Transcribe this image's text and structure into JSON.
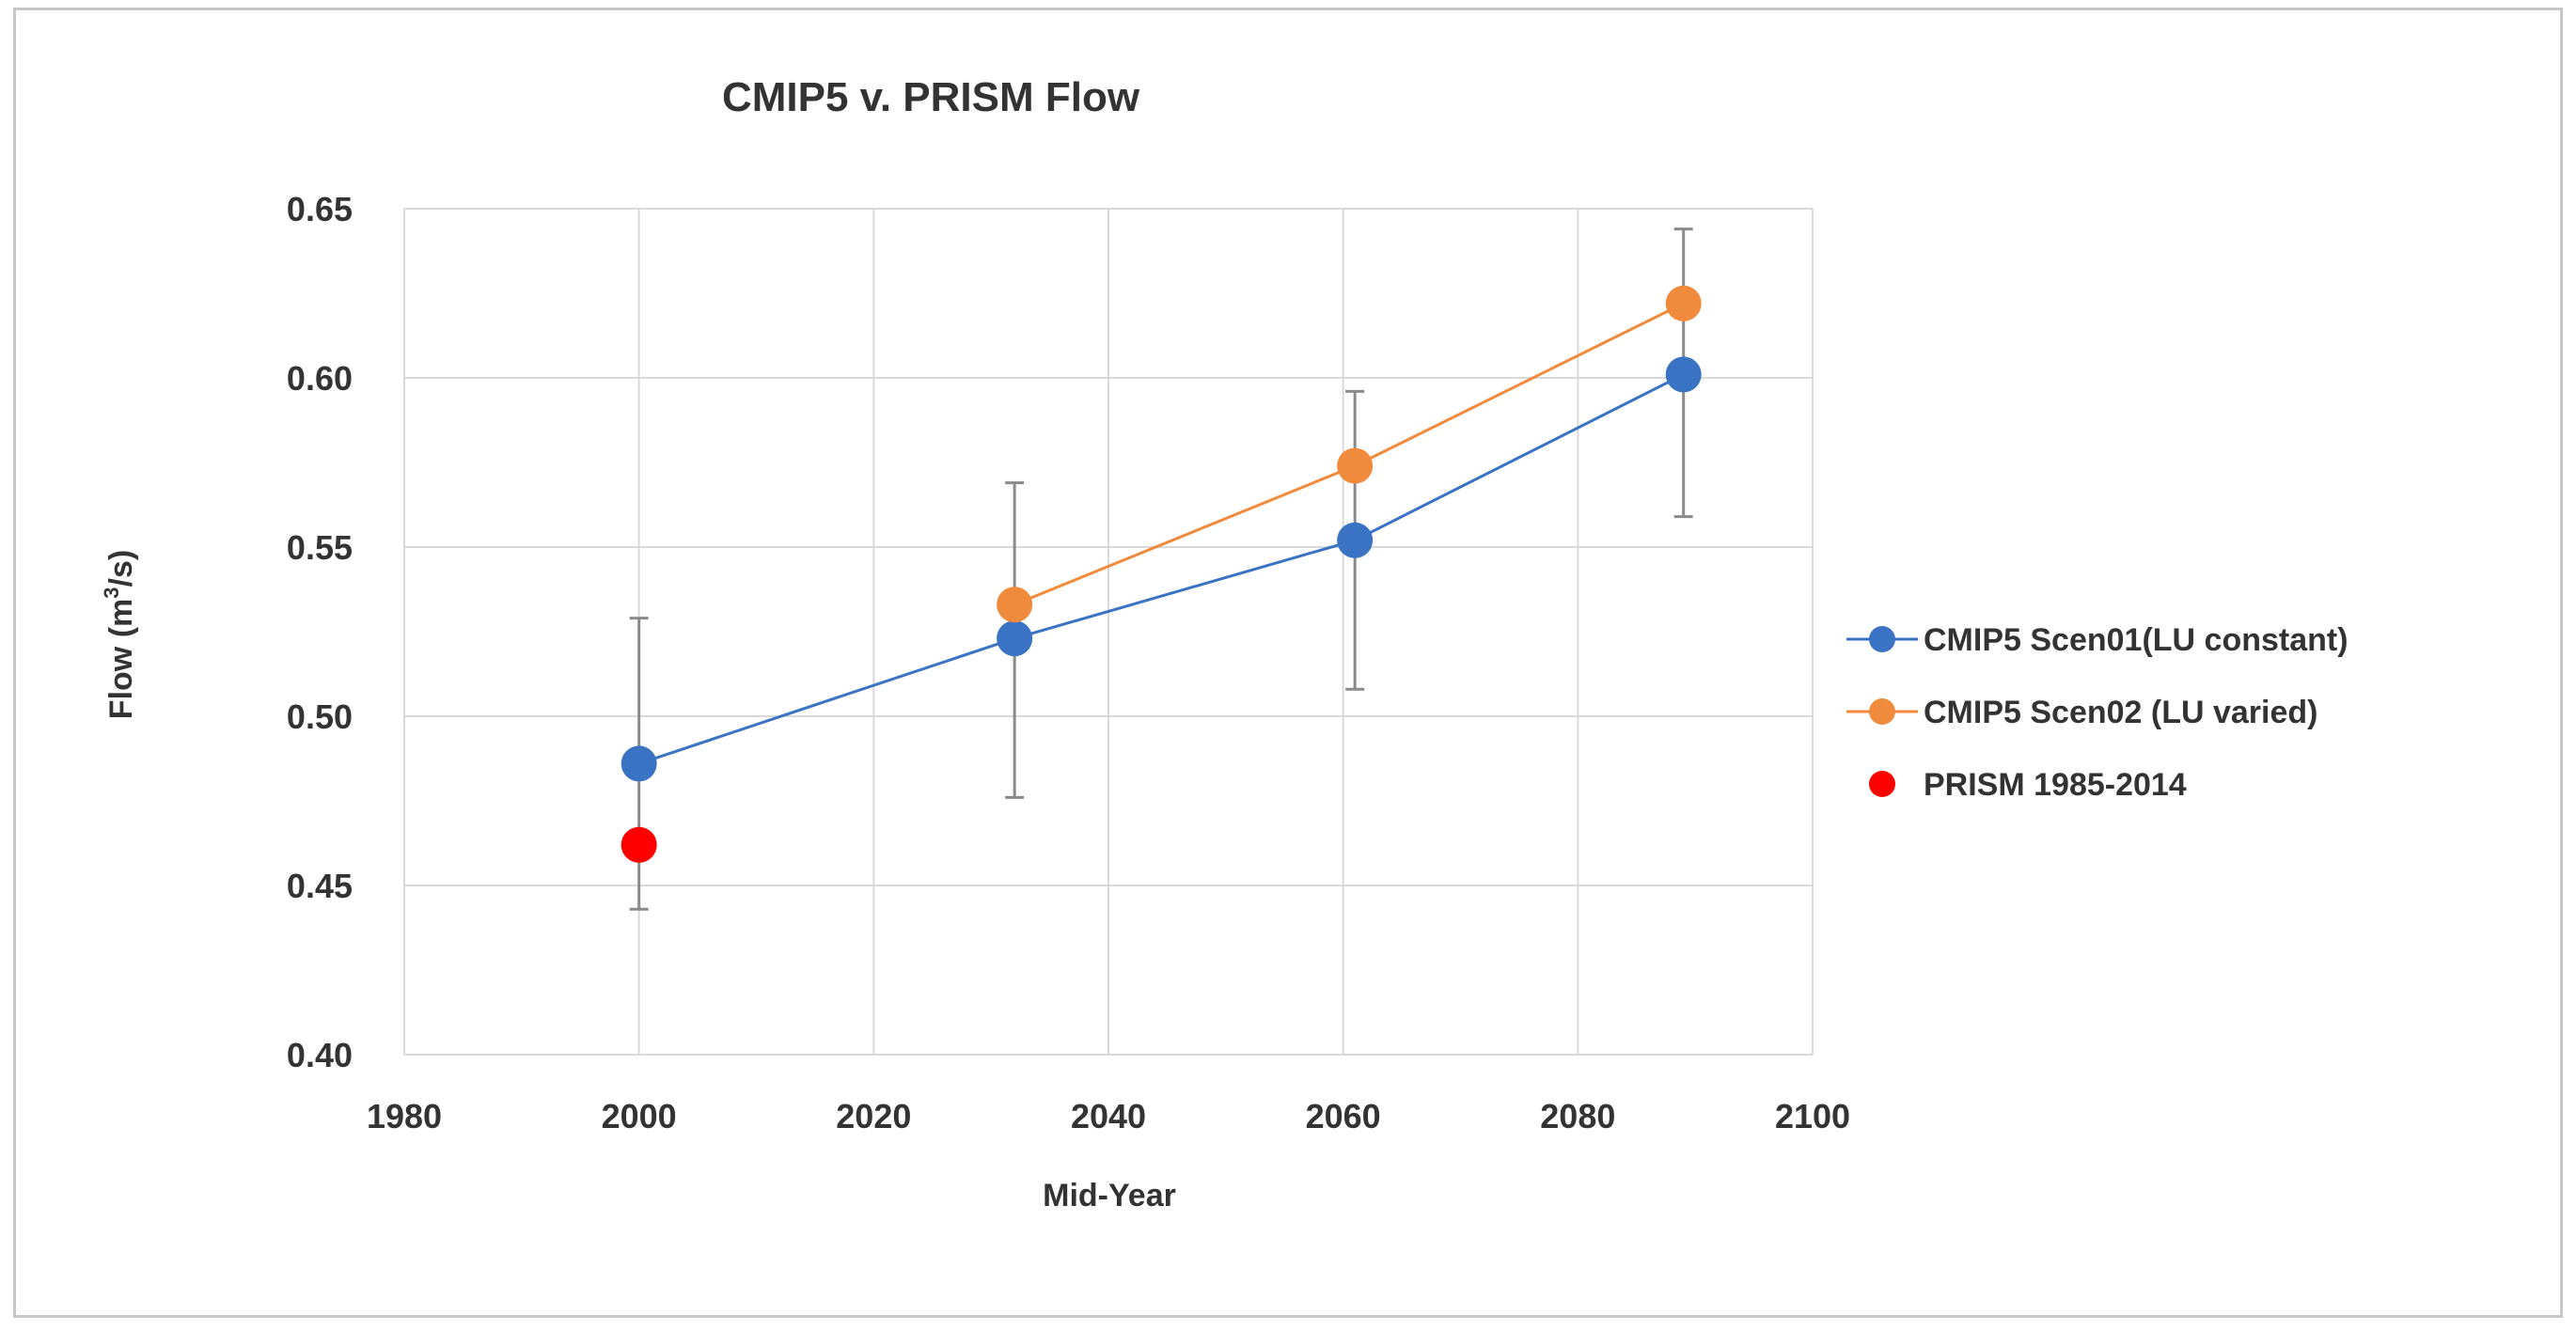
{
  "chart_data": {
    "type": "line",
    "title": "CMIP5 v. PRISM Flow",
    "xlabel": "Mid-Year",
    "ylabel": "Flow (m³/s)",
    "ylabel_parts": {
      "prefix": "Flow (m",
      "sup": "3",
      "suffix": "/s)"
    },
    "xlim": [
      1980,
      2100
    ],
    "ylim": [
      0.4,
      0.65
    ],
    "x_ticks": [
      1980,
      2000,
      2020,
      2040,
      2060,
      2080,
      2100
    ],
    "x_tick_labels": [
      "1980",
      "2000",
      "2020",
      "2040",
      "2060",
      "2080",
      "2100"
    ],
    "y_ticks": [
      0.4,
      0.45,
      0.5,
      0.55,
      0.6,
      0.65
    ],
    "y_tick_labels": [
      "0.40",
      "0.45",
      "0.50",
      "0.55",
      "0.60",
      "0.65"
    ],
    "grid": true,
    "legend_position": "right",
    "series": [
      {
        "name": "CMIP5 Scen01(LU constant)",
        "color": "#3a72c4",
        "connected": true,
        "x": [
          2000,
          2032,
          2061,
          2089
        ],
        "y": [
          0.486,
          0.523,
          0.552,
          0.601
        ],
        "error_low": [
          0.443,
          0.476,
          0.508,
          0.559
        ],
        "error_high": [
          0.529,
          0.569,
          0.596,
          0.644
        ]
      },
      {
        "name": "CMIP5 Scen02 (LU varied)",
        "color": "#f08a3c",
        "connected": true,
        "x": [
          2032,
          2061,
          2089
        ],
        "y": [
          0.533,
          0.574,
          0.622
        ]
      },
      {
        "name": "PRISM 1985-2014",
        "color": "#ff0000",
        "connected": false,
        "x": [
          2000
        ],
        "y": [
          0.462
        ]
      }
    ],
    "error_bar_color": "#8a8a8a"
  }
}
